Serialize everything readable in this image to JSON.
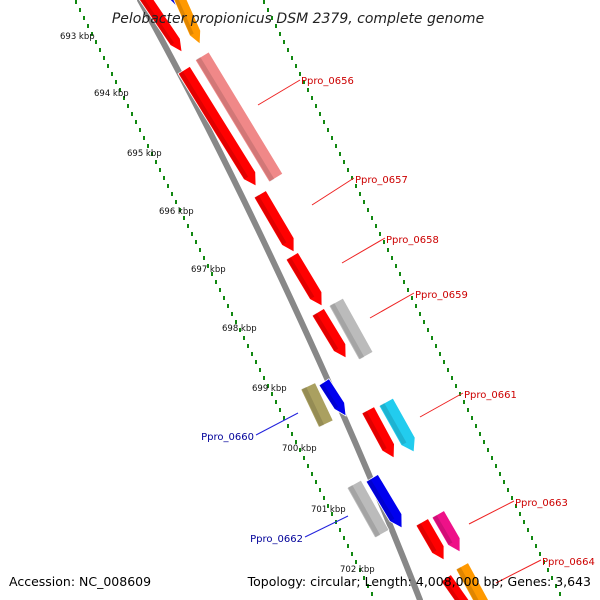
{
  "header": {
    "title": "Pelobacter propionicus DSM 2379, complete genome"
  },
  "footer": {
    "accession": "Accession: NC_008609",
    "summary": "Topology: circular; Length: 4,008,000 bp; Genes: 3,643"
  },
  "colors": {
    "backbone": "#888888",
    "tick": "#118811",
    "label_forward": "#cc0000",
    "label_reverse": "#000099",
    "connector_forward": "#ee2222",
    "connector_reverse": "#2222dd"
  },
  "kbp_ticks": [
    "693 kbp",
    "694 kbp",
    "695 kbp",
    "696 kbp",
    "697 kbp",
    "698 kbp",
    "699 kbp",
    "700 kbp",
    "701 kbp",
    "702 kbp"
  ],
  "genes": [
    {
      "id": "Ppro_0656",
      "label": "Ppro_0656",
      "strand": "forward",
      "color": "#f08888"
    },
    {
      "id": "Ppro_0657",
      "label": "Ppro_0657",
      "strand": "forward",
      "color": "#ff0000"
    },
    {
      "id": "Ppro_0658",
      "label": "Ppro_0658",
      "strand": "forward",
      "color": "#ff0000"
    },
    {
      "id": "Ppro_0659",
      "label": "Ppro_0659",
      "strand": "forward",
      "color": "#bbbbbb"
    },
    {
      "id": "Ppro_0660",
      "label": "Ppro_0660",
      "strand": "reverse",
      "color": "#aaa060"
    },
    {
      "id": "Ppro_0661",
      "label": "Ppro_0661",
      "strand": "forward",
      "color": "#22ccee"
    },
    {
      "id": "Ppro_0662",
      "label": "Ppro_0662",
      "strand": "reverse",
      "color": "#bbbbbb"
    },
    {
      "id": "Ppro_0663",
      "label": "Ppro_0663",
      "strand": "forward",
      "color": "#ee1188"
    },
    {
      "id": "Ppro_0664",
      "label": "Ppro_0664",
      "strand": "forward",
      "color": "#ff9900"
    }
  ],
  "extra_features": [
    {
      "name": "blue-feature-top",
      "color": "#0000ee"
    },
    {
      "name": "orange-feature-top",
      "color": "#ff9900"
    },
    {
      "name": "red-feature-0656",
      "color": "#ff0000"
    },
    {
      "name": "red-feature-0657",
      "color": "#ff0000"
    },
    {
      "name": "red-feature-0659",
      "color": "#ff0000"
    },
    {
      "name": "blue-feature-0660",
      "color": "#0000ee"
    },
    {
      "name": "red-feature-0661",
      "color": "#ff0000"
    },
    {
      "name": "blue-feature-0662",
      "color": "#0000ee"
    },
    {
      "name": "red-feature-0663",
      "color": "#ff0000"
    }
  ]
}
